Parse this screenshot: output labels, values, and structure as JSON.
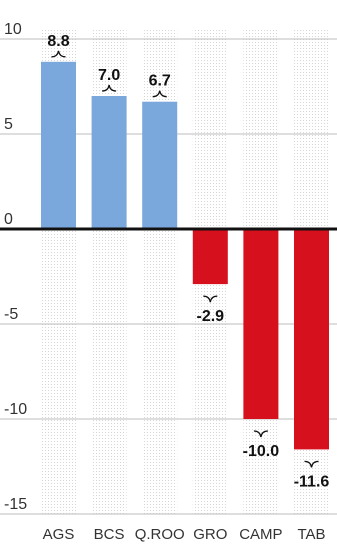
{
  "chart_data": {
    "type": "bar",
    "categories": [
      "AGS",
      "BCS",
      "Q.ROO",
      "GRO",
      "CAMP",
      "TAB"
    ],
    "values": [
      8.8,
      7.0,
      6.7,
      -2.9,
      -10.0,
      -11.6
    ],
    "value_labels": [
      "8.8",
      "7.0",
      "6.7",
      "-2.9",
      "-10.0",
      "-11.6"
    ],
    "ylim": [
      -15,
      10
    ],
    "yticks": [
      10,
      5,
      0,
      -5,
      -10,
      -15
    ],
    "ytick_labels": [
      "10",
      "5",
      "0",
      "-5",
      "-10",
      "-15"
    ],
    "title": "",
    "xlabel": "",
    "ylabel": "",
    "grid": "horizontal",
    "colors": {
      "positive": "#7aa7dc",
      "negative": "#d6101d",
      "zero_line": "#111111",
      "grid": "#bdbdbd",
      "column_dots": "#d8d8d8"
    }
  }
}
